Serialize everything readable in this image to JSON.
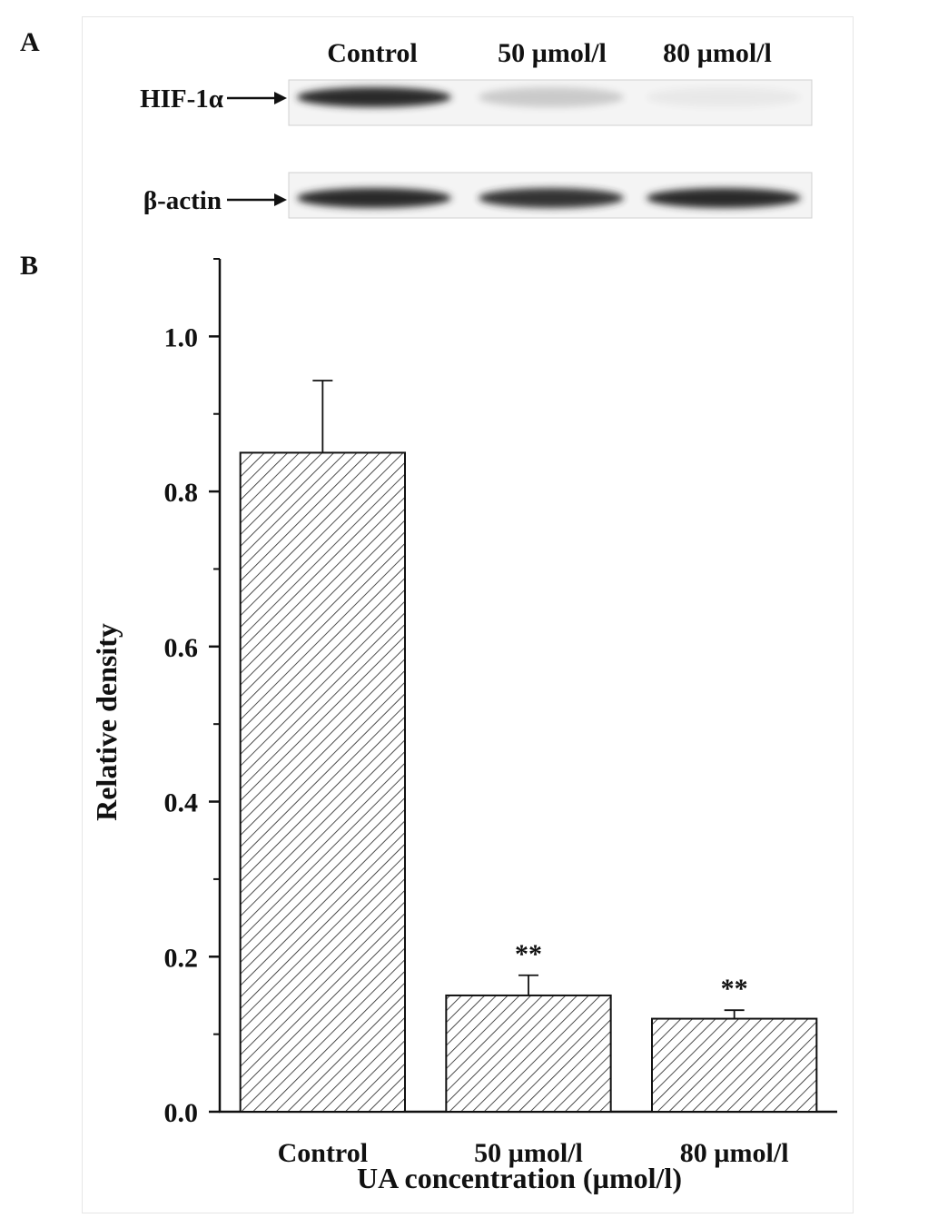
{
  "panel_a": {
    "label": "A",
    "lane_labels": [
      "Control",
      "50 µmol/l",
      "80 µmol/l"
    ],
    "rows": [
      {
        "label": "HIF-1α",
        "band_intensity": [
          1.0,
          0.2,
          0.05
        ]
      },
      {
        "label": "β-actin",
        "band_intensity": [
          1.0,
          0.95,
          1.0
        ]
      }
    ]
  },
  "panel_b": {
    "label": "B"
  },
  "chart_data": {
    "type": "bar",
    "categories": [
      "Control",
      "50 µmol/l",
      "80 µmol/l"
    ],
    "values": [
      0.85,
      0.15,
      0.12
    ],
    "errors": [
      0.093,
      0.026,
      0.011
    ],
    "annotations": [
      "",
      "**",
      "**"
    ],
    "xlabel": "UA concentration (µmol/l)",
    "ylabel": "Relative density",
    "ylim": [
      0.0,
      1.1
    ],
    "yticks": [
      0.0,
      0.2,
      0.4,
      0.6,
      0.8,
      1.0
    ],
    "ytick_labels": [
      "0.0",
      "0.2",
      "0.4",
      "0.6",
      "0.8",
      "1.0"
    ],
    "bar_fill": "hatched",
    "grid": false,
    "legend": "none"
  },
  "colors": {
    "ink": "#111111",
    "band": "#2b2b2b",
    "blot_bg": "#f4f4f4"
  }
}
